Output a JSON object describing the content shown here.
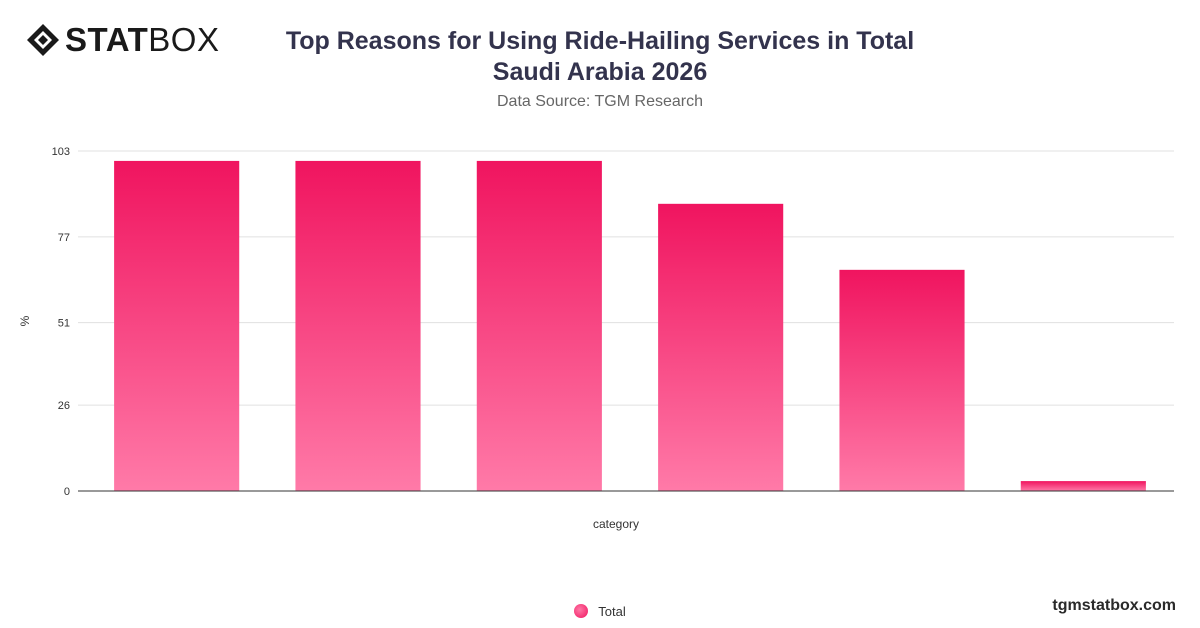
{
  "brand": {
    "logo_bold": "STAT",
    "logo_light": "BOX",
    "site": "tgmstatbox.com"
  },
  "header": {
    "title_line1": "Top Reasons for Using Ride-Hailing Services in Total",
    "title_line2": "Saudi Arabia 2026",
    "subtitle": "Data Source: TGM Research"
  },
  "colors": {
    "bar_top": "#f0145f",
    "bar_bottom": "#ff7aa8",
    "grid": "#e0e0e0",
    "axis": "#333333"
  },
  "chart_data": {
    "type": "bar",
    "title": "Top Reasons for Using Ride-Hailing Services in Total Saudi Arabia 2026",
    "subtitle": "Data Source: TGM Research",
    "xlabel": "category",
    "ylabel": "%",
    "ylim": [
      0,
      103
    ],
    "yticks": [
      0,
      26,
      51,
      77,
      103
    ],
    "categories": [
      "",
      "",
      "",
      "",
      "",
      ""
    ],
    "series": [
      {
        "name": "Total",
        "values": [
          100,
          100,
          100,
          87,
          67,
          3
        ]
      }
    ],
    "grid": true,
    "legend": "bottom-center"
  }
}
